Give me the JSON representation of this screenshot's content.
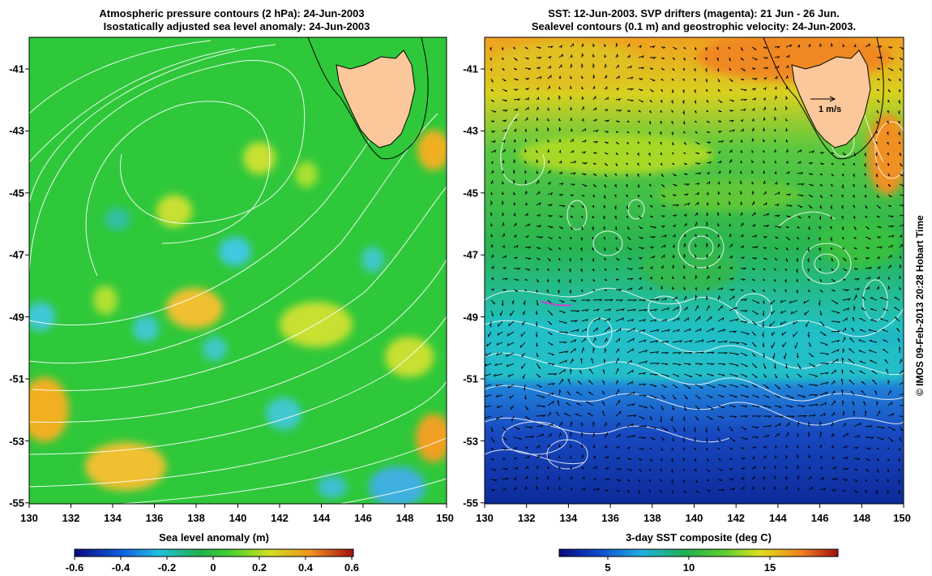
{
  "left_panel": {
    "title_line1": "Atmospheric pressure contours (2 hPa): 24-Jun-2003",
    "title_line2": "Isostatically adjusted sea level anomaly: 24-Jun-2003",
    "x_ticks": [
      "130",
      "132",
      "134",
      "136",
      "138",
      "140",
      "142",
      "144",
      "146",
      "148",
      "150"
    ],
    "y_ticks": [
      "-41",
      "-43",
      "-45",
      "-47",
      "-49",
      "-51",
      "-53",
      "-55"
    ],
    "colorbar": {
      "label": "Sea level anomaly (m)",
      "ticks": [
        "-0.6",
        "-0.4",
        "-0.2",
        "0",
        "0.2",
        "0.4",
        "0.6"
      ]
    }
  },
  "right_panel": {
    "title_line1": "SST: 12-Jun-2003. SVP drifters (magenta): 21 Jun - 26 Jun.",
    "title_line2": "Sealevel contours (0.1 m) and geostrophic velocity: 24-Jun-2003.",
    "x_ticks": [
      "130",
      "132",
      "134",
      "136",
      "138",
      "140",
      "142",
      "144",
      "146",
      "148",
      "150"
    ],
    "y_ticks": [
      "-41",
      "-43",
      "-45",
      "-47",
      "-49",
      "-51",
      "-53",
      "-55"
    ],
    "velocity_scale_label": "1 m/s",
    "colorbar": {
      "label": "3-day SST composite (deg C)",
      "ticks": [
        "5",
        "10",
        "15"
      ]
    }
  },
  "credit": "© IMOS 09-Feb-2013 20:28 Hobart Time",
  "colors": {
    "land": "#fbc89b",
    "sla_base": "#2fc83a",
    "contour": "#ffffff",
    "coast": "#000000"
  }
}
